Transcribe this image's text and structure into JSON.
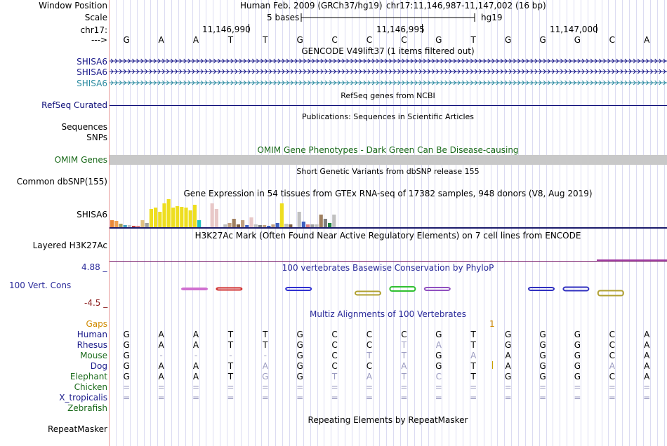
{
  "colors": {
    "gencode": "#1a1a8a",
    "gencode_teal": "#2a8aa0",
    "refseq": "#0c0c78",
    "omim_green": "#1a6a1a",
    "omim_bar": "#c8c8c8",
    "gtex_label": "#000000",
    "h3k27ac_line": "#7a1f6a",
    "cons_blue": "#2a2a9a",
    "cons_red": "#8a1a1a",
    "gaps": "#d08a00",
    "species_blue": "#1a1a8a",
    "species_green": "#1a6a1a",
    "faded": "#9a9ac0"
  },
  "header": {
    "window_position_label": "Window Position",
    "assembly_text": "Human Feb. 2009 (GRCh37/hg19)",
    "position_text": "chr17:11,146,987-11,147,002 (16 bp)",
    "scale_label": "Scale",
    "scale_text": "5 bases",
    "scale_db": "hg19",
    "chrom_label": "chr17:",
    "coord_ticks": [
      "11,146,990",
      "11,146,995",
      "11,147,000"
    ],
    "arrow_label": "--->",
    "sequence": [
      "G",
      "A",
      "A",
      "T",
      "T",
      "G",
      "C",
      "C",
      "C",
      "G",
      "T",
      "G",
      "G",
      "G",
      "C",
      "A"
    ]
  },
  "gencode": {
    "title": "GENCODE V49lift37 (1 items filtered out)",
    "transcripts": [
      "SHISA6",
      "SHISA6",
      "SHISA6"
    ]
  },
  "refseq": {
    "title": "RefSeq genes from NCBI",
    "label": "RefSeq Curated"
  },
  "publications": {
    "title": "Publications: Sequences in Scientific Articles",
    "labels": [
      "Sequences",
      "SNPs"
    ]
  },
  "omim": {
    "title": "OMIM Gene Phenotypes - Dark Green Can Be Disease-causing",
    "label": "OMIM Genes"
  },
  "dbsnp": {
    "title": "Short Genetic Variants from dbSNP release 155",
    "label": "Common dbSNP(155)"
  },
  "gtex": {
    "title": "Gene Expression in 54 tissues from GTEx RNA-seq of 17382 samples, 948 donors (V8, Aug 2019)",
    "label": "SHISA6"
  },
  "h3k27ac": {
    "title": "H3K27Ac Mark (Often Found Near Active Regulatory Elements) on 7 cell lines from ENCODE",
    "label": "Layered H3K27Ac"
  },
  "conservation": {
    "title": "100 vertebrates Basewise Conservation by PhyloP",
    "label": "100 Vert. Cons",
    "max_label": "4.88 _",
    "min_label": "-4.5 _"
  },
  "multiz": {
    "title": "Multiz Alignments of 100 Vertebrates",
    "gaps_label": "Gaps",
    "gap_count": "1",
    "species": [
      {
        "name": "Human",
        "bases": [
          "G",
          "A",
          "A",
          "T",
          "T",
          "G",
          "C",
          "C",
          "C",
          "G",
          "T",
          "G",
          "G",
          "G",
          "C",
          "A"
        ]
      },
      {
        "name": "Rhesus",
        "bases": [
          "G",
          "A",
          "A",
          "T",
          "T",
          "G",
          "C",
          "C",
          "T",
          "A",
          "T",
          "G",
          "G",
          "G",
          "C",
          "A"
        ]
      },
      {
        "name": "Mouse",
        "bases": [
          "G",
          "-",
          "-",
          "-",
          "-",
          "G",
          "C",
          "T",
          "T",
          "G",
          "A",
          "A",
          "G",
          "G",
          "C",
          "A"
        ]
      },
      {
        "name": "Dog",
        "bases": [
          "G",
          "A",
          "A",
          "T",
          "A",
          "G",
          "C",
          "C",
          "A",
          "G",
          "T",
          "A",
          "G",
          "G",
          "A",
          "A"
        ]
      },
      {
        "name": "Elephant",
        "bases": [
          "G",
          "A",
          "A",
          "T",
          "G",
          "G",
          "T",
          "A",
          "T",
          "C",
          "T",
          "G",
          "G",
          "G",
          "C",
          "A"
        ]
      },
      {
        "name": "Chicken",
        "bases": [
          "=",
          "=",
          "=",
          "=",
          "=",
          "=",
          "=",
          "=",
          "=",
          "=",
          "=",
          "=",
          "=",
          "=",
          "=",
          "="
        ]
      },
      {
        "name": "X_tropicalis",
        "bases": [
          "=",
          "=",
          "=",
          "=",
          "=",
          "=",
          "=",
          "=",
          "=",
          "=",
          "=",
          "=",
          "=",
          "=",
          "=",
          "="
        ]
      },
      {
        "name": "Zebrafish",
        "bases": []
      }
    ]
  },
  "repeatmasker": {
    "title": "Repeating Elements by RepeatMasker",
    "label": "RepeatMasker"
  }
}
